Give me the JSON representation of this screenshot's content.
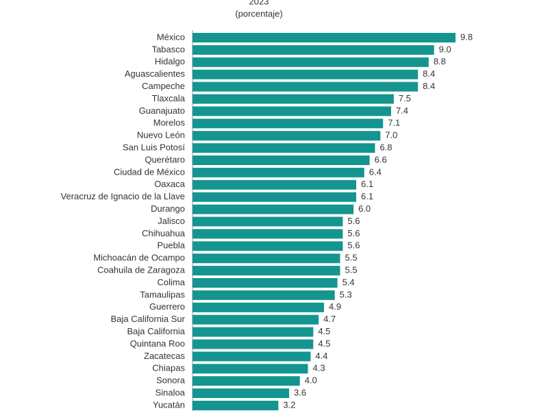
{
  "chart_data": {
    "type": "bar",
    "orientation": "horizontal",
    "title": "2023",
    "subtitle": "(porcentaje)",
    "categories": [
      "México",
      "Tabasco",
      "Hidalgo",
      "Aguascalientes",
      "Campeche",
      "Tlaxcala",
      "Guanajuato",
      "Morelos",
      "Nuevo León",
      "San Luis Potosí",
      "Querétaro",
      "Ciudad de México",
      "Oaxaca",
      "Veracruz de Ignacio de la Llave",
      "Durango",
      "Jalisco",
      "Chihuahua",
      "Puebla",
      "Michoacán de Ocampo",
      "Coahuila de Zaragoza",
      "Colima",
      "Tamaulipas",
      "Guerrero",
      "Baja California Sur",
      "Baja California",
      "Quintana Roo",
      "Zacatecas",
      "Chiapas",
      "Sonora",
      "Sinaloa",
      "Yucatán"
    ],
    "values": [
      9.8,
      9.0,
      8.8,
      8.4,
      8.4,
      7.5,
      7.4,
      7.1,
      7.0,
      6.8,
      6.6,
      6.4,
      6.1,
      6.1,
      6.0,
      5.6,
      5.6,
      5.6,
      5.5,
      5.5,
      5.4,
      5.3,
      4.9,
      4.7,
      4.5,
      4.5,
      4.4,
      4.3,
      4.0,
      3.6,
      3.2
    ],
    "value_labels": [
      "9.8",
      "9.0",
      "8.8",
      "8.4",
      "8.4",
      "7.5",
      "7.4",
      "7.1",
      "7.0",
      "6.8",
      "6.6",
      "6.4",
      "6.1",
      "6.1",
      "6.0",
      "5.6",
      "5.6",
      "5.6",
      "5.5",
      "5.5",
      "5.4",
      "5.3",
      "4.9",
      "4.7",
      "4.5",
      "4.5",
      "4.4",
      "4.3",
      "4.0",
      "3.6",
      "3.2"
    ],
    "color": "#15958f"
  }
}
